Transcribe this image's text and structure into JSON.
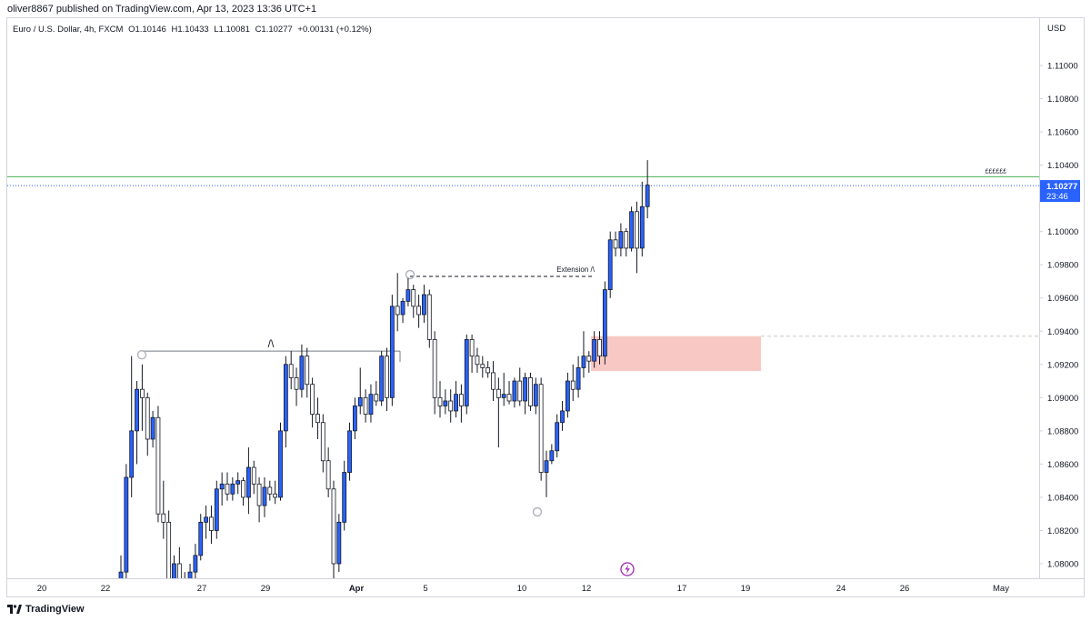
{
  "header": {
    "published_text": "oliver8867 published on TradingView.com, Apr 13, 2023 13:36 UTC+1"
  },
  "legend": {
    "symbol": "Euro / U.S. Dollar, 4h, FXCM",
    "open": "O1.10146",
    "high": "H1.10433",
    "low": "L1.10081",
    "close": "C1.10277",
    "change": "+0.00131 (+0.12%)"
  },
  "footer": {
    "brand": "TradingView"
  },
  "colors": {
    "up": "#2962ff",
    "down": "#ffffff",
    "wick": "#131722",
    "resistance_line": "#4caf50",
    "price_line": "#2962ff",
    "zone_fill": "#f8c9c4"
  },
  "chart_data": {
    "type": "candlestick",
    "symbol": "EURUSD",
    "timeframe": "4h",
    "currency_label": "USD",
    "price_axis_ticks": [
      "1.11000",
      "1.10800",
      "1.10600",
      "1.10400",
      "1.10200",
      "1.10000",
      "1.09800",
      "1.09600",
      "1.09400",
      "1.09200",
      "1.09000",
      "1.08800",
      "1.08600",
      "1.08400",
      "1.08200",
      "1.08000"
    ],
    "ylim": [
      1.0795,
      1.112
    ],
    "time_axis_ticks": [
      "20",
      "22",
      "27",
      "29",
      "Apr",
      "5",
      "10",
      "12",
      "17",
      "19",
      "24",
      "26",
      "May"
    ],
    "last_price": {
      "value": "1.10277",
      "countdown": "23:46"
    },
    "resistance_level": {
      "value": 1.1033,
      "label": "££££££"
    },
    "annotations": {
      "structure_mark": "/\\",
      "extension_label": "Extension /\\",
      "structure_level": 1.0928,
      "extension_level": 1.0973,
      "zone": {
        "top": 1.0937,
        "bottom": 1.0916
      },
      "zone_extension_level": 1.0937
    },
    "candles": [
      [
        1.077,
        1.0805,
        1.076,
        1.0795
      ],
      [
        1.0795,
        1.086,
        1.079,
        1.0852
      ],
      [
        1.0852,
        1.0925,
        1.084,
        1.088
      ],
      [
        1.088,
        1.091,
        1.086,
        1.0905
      ],
      [
        1.0905,
        1.092,
        1.088,
        1.09
      ],
      [
        1.09,
        1.0903,
        1.0865,
        1.0875
      ],
      [
        1.0875,
        1.0892,
        1.087,
        1.0888
      ],
      [
        1.0888,
        1.0895,
        1.0825,
        1.083
      ],
      [
        1.083,
        1.085,
        1.0815,
        1.0825
      ],
      [
        1.0825,
        1.0832,
        1.078,
        1.079
      ],
      [
        1.079,
        1.0805,
        1.077,
        1.08
      ],
      [
        1.08,
        1.081,
        1.0785,
        1.079
      ],
      [
        1.079,
        1.0795,
        1.0772,
        1.0785
      ],
      [
        1.0785,
        1.08,
        1.0775,
        1.0795
      ],
      [
        1.0795,
        1.0812,
        1.079,
        1.0805
      ],
      [
        1.0805,
        1.083,
        1.0802,
        1.0825
      ],
      [
        1.0825,
        1.0835,
        1.0815,
        1.0828
      ],
      [
        1.0828,
        1.0835,
        1.0812,
        1.082
      ],
      [
        1.082,
        1.085,
        1.0815,
        1.0845
      ],
      [
        1.0845,
        1.0855,
        1.0835,
        1.0848
      ],
      [
        1.0848,
        1.0855,
        1.0838,
        1.0842
      ],
      [
        1.0842,
        1.0852,
        1.0838,
        1.0848
      ],
      [
        1.0848,
        1.0855,
        1.0842,
        1.085
      ],
      [
        1.085,
        1.0852,
        1.0835,
        1.084
      ],
      [
        1.084,
        1.087,
        1.083,
        1.0858
      ],
      [
        1.0858,
        1.0862,
        1.0842,
        1.0848
      ],
      [
        1.0848,
        1.0852,
        1.0825,
        1.0835
      ],
      [
        1.0835,
        1.0852,
        1.0828,
        1.0846
      ],
      [
        1.0846,
        1.085,
        1.0838,
        1.0842
      ],
      [
        1.0842,
        1.085,
        1.0836,
        1.084
      ],
      [
        1.084,
        1.0885,
        1.0838,
        1.088
      ],
      [
        1.088,
        1.0925,
        1.087,
        1.092
      ],
      [
        1.092,
        1.0928,
        1.0905,
        1.0912
      ],
      [
        1.0912,
        1.0918,
        1.0895,
        1.0905
      ],
      [
        1.0905,
        1.0932,
        1.09,
        1.0925
      ],
      [
        1.0925,
        1.093,
        1.09,
        1.0908
      ],
      [
        1.0908,
        1.0912,
        1.0882,
        1.089
      ],
      [
        1.089,
        1.09,
        1.0875,
        1.0885
      ],
      [
        1.0885,
        1.089,
        1.0855,
        1.0862
      ],
      [
        1.0862,
        1.087,
        1.084,
        1.0845
      ],
      [
        1.0845,
        1.085,
        1.079,
        1.08
      ],
      [
        1.08,
        1.083,
        1.0795,
        1.0825
      ],
      [
        1.0825,
        1.0862,
        1.082,
        1.0855
      ],
      [
        1.0855,
        1.0885,
        1.085,
        1.088
      ],
      [
        1.088,
        1.09,
        1.0875,
        1.0895
      ],
      [
        1.0895,
        1.0918,
        1.089,
        1.09
      ],
      [
        1.09,
        1.0905,
        1.0885,
        1.089
      ],
      [
        1.089,
        1.0908,
        1.0885,
        1.0902
      ],
      [
        1.0902,
        1.091,
        1.0895,
        1.0898
      ],
      [
        1.0898,
        1.0928,
        1.0895,
        1.0925
      ],
      [
        1.0925,
        1.093,
        1.0892,
        1.09
      ],
      [
        1.09,
        1.0962,
        1.0895,
        1.0955
      ],
      [
        1.0955,
        1.0975,
        1.094,
        1.095
      ],
      [
        1.095,
        1.096,
        1.0945,
        1.0958
      ],
      [
        1.0958,
        1.0972,
        1.0955,
        1.0965
      ],
      [
        1.0965,
        1.0968,
        1.0948,
        1.0955
      ],
      [
        1.0955,
        1.0962,
        1.0942,
        1.095
      ],
      [
        1.095,
        1.0968,
        1.0945,
        1.0962
      ],
      [
        1.0962,
        1.0965,
        1.093,
        1.0935
      ],
      [
        1.0935,
        1.094,
        1.089,
        1.09
      ],
      [
        1.09,
        1.091,
        1.0888,
        1.0895
      ],
      [
        1.0895,
        1.0905,
        1.089,
        1.0898
      ],
      [
        1.0898,
        1.0905,
        1.0885,
        1.0892
      ],
      [
        1.0892,
        1.091,
        1.0888,
        1.0902
      ],
      [
        1.0902,
        1.0908,
        1.0885,
        1.0895
      ],
      [
        1.0895,
        1.0938,
        1.089,
        1.0935
      ],
      [
        1.0935,
        1.0938,
        1.0915,
        1.0925
      ],
      [
        1.0925,
        1.093,
        1.0915,
        1.092
      ],
      [
        1.092,
        1.0925,
        1.0912,
        1.0918
      ],
      [
        1.0918,
        1.0922,
        1.0912,
        1.0915
      ],
      [
        1.0915,
        1.0922,
        1.0898,
        1.0905
      ],
      [
        1.0905,
        1.0912,
        1.087,
        1.09
      ],
      [
        1.09,
        1.0915,
        1.0895,
        1.0902
      ],
      [
        1.0902,
        1.091,
        1.0896,
        1.0898
      ],
      [
        1.0898,
        1.0912,
        1.0894,
        1.091
      ],
      [
        1.091,
        1.0918,
        1.0895,
        1.0898
      ],
      [
        1.0898,
        1.0915,
        1.089,
        1.0912
      ],
      [
        1.0912,
        1.0915,
        1.0892,
        1.0895
      ],
      [
        1.0895,
        1.0912,
        1.089,
        1.0908
      ],
      [
        1.0908,
        1.0912,
        1.085,
        1.0855
      ],
      [
        1.0855,
        1.0868,
        1.084,
        1.0862
      ],
      [
        1.0862,
        1.0872,
        1.086,
        1.0868
      ],
      [
        1.0868,
        1.089,
        1.0864,
        1.0885
      ],
      [
        1.0885,
        1.0898,
        1.088,
        1.0892
      ],
      [
        1.0892,
        1.0915,
        1.0888,
        1.091
      ],
      [
        1.091,
        1.092,
        1.0898,
        1.0905
      ],
      [
        1.0905,
        1.0925,
        1.09,
        1.0918
      ],
      [
        1.0918,
        1.094,
        1.0912,
        1.0925
      ],
      [
        1.0925,
        1.0928,
        1.0915,
        1.0922
      ],
      [
        1.0922,
        1.094,
        1.0918,
        1.0935
      ],
      [
        1.0935,
        1.094,
        1.092,
        1.0925
      ],
      [
        1.0925,
        1.097,
        1.092,
        1.0965
      ],
      [
        1.0965,
        1.1,
        1.096,
        1.0995
      ],
      [
        1.0995,
        1.1,
        1.0985,
        1.099
      ],
      [
        1.099,
        1.1005,
        1.0985,
        1.1
      ],
      [
        1.1,
        1.1002,
        1.0985,
        1.099
      ],
      [
        1.099,
        1.1015,
        1.0988,
        1.1012
      ],
      [
        1.1012,
        1.1018,
        1.0975,
        1.099
      ],
      [
        1.099,
        1.103,
        1.0985,
        1.1015
      ],
      [
        1.1015,
        1.1043,
        1.1008,
        1.1028
      ]
    ]
  }
}
